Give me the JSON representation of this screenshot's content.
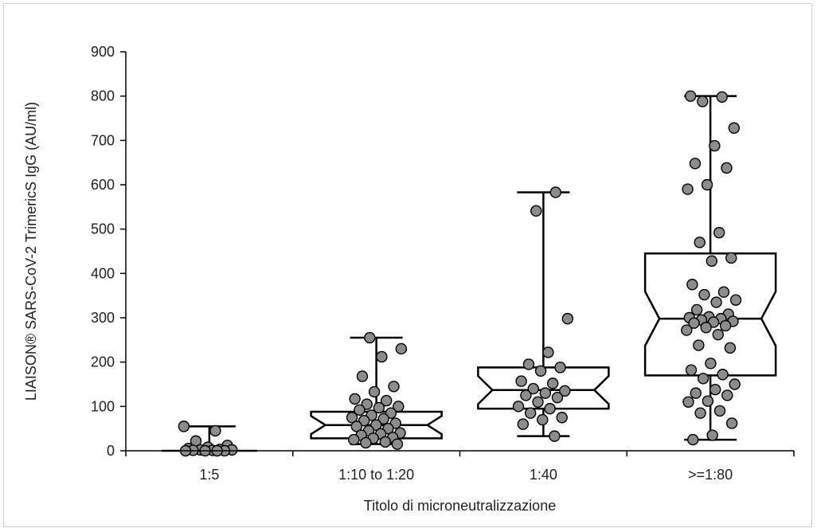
{
  "chart_data": {
    "type": "boxplot",
    "title": "",
    "xlabel": "Titolo di microneutralizzazione",
    "ylabel": "LIAISON® SARS-CoV-2 TrimericS IgG (AU/ml)",
    "ylim": [
      0,
      900
    ],
    "yticks": [
      "0",
      "100",
      "200",
      "300",
      "400",
      "500",
      "600",
      "700",
      "800",
      "900"
    ],
    "grid": false,
    "legend": "none",
    "colors": {
      "point_fill": "#8c8c8c",
      "stroke": "#000000"
    },
    "categories": [
      "1:5",
      "1:10 to 1:20",
      "1:40",
      ">=1:80"
    ],
    "boxes": [
      {
        "category": "1:5",
        "min": 0,
        "q1": 0,
        "median": 0,
        "q3": 0,
        "max": 55
      },
      {
        "category": "1:10 to 1:20",
        "min": 15,
        "q1": 28,
        "median": 58,
        "q3": 88,
        "max": 255
      },
      {
        "category": "1:40",
        "min": 33,
        "q1": 95,
        "median": 137,
        "q3": 188,
        "max": 583
      },
      {
        "category": ">=1:80",
        "min": 25,
        "q1": 170,
        "median": 298,
        "q3": 445,
        "max": 800
      }
    ],
    "points": [
      {
        "category": "1:5",
        "values": [
          55,
          45,
          22,
          12,
          8,
          5,
          3,
          2,
          2,
          1,
          1,
          0,
          0,
          0,
          0
        ]
      },
      {
        "category": "1:10 to 1:20",
        "values": [
          255,
          230,
          212,
          168,
          145,
          133,
          117,
          113,
          105,
          100,
          97,
          92,
          85,
          80,
          75,
          72,
          68,
          62,
          58,
          55,
          50,
          45,
          40,
          38,
          35,
          30,
          28,
          25,
          20,
          18,
          15
        ]
      },
      {
        "category": "1:40",
        "values": [
          583,
          541,
          298,
          222,
          195,
          188,
          180,
          157,
          152,
          140,
          135,
          130,
          125,
          120,
          110,
          100,
          95,
          85,
          75,
          70,
          60,
          33
        ]
      },
      {
        "category": ">=1:80",
        "values": [
          800,
          798,
          788,
          728,
          688,
          648,
          638,
          600,
          590,
          492,
          470,
          435,
          428,
          375,
          358,
          352,
          340,
          335,
          318,
          308,
          302,
          300,
          298,
          295,
          292,
          290,
          288,
          282,
          278,
          272,
          262,
          238,
          232,
          197,
          182,
          172,
          163,
          150,
          138,
          130,
          125,
          112,
          110,
          90,
          85,
          62,
          35,
          25
        ]
      }
    ]
  }
}
